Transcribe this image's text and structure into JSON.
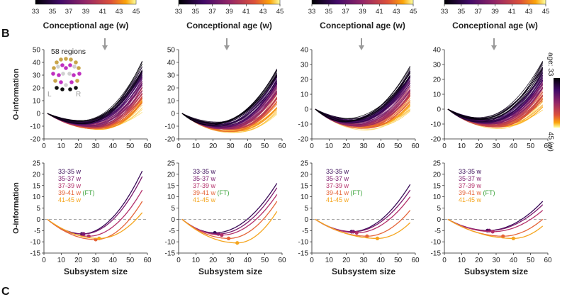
{
  "panel_labels": {
    "b": "B",
    "c": "C"
  },
  "colorbar_top": {
    "ticks": [
      "33",
      "35",
      "37",
      "39",
      "41",
      "43",
      "45"
    ],
    "xlabel": "Conceptional age (w)"
  },
  "age_colorbar": {
    "label_top": "age: 33",
    "label_bottom": "45 (w)"
  },
  "inset": {
    "label": "58 regions",
    "left": "L",
    "right": "R"
  },
  "panel_c_text": "",
  "colors": {
    "g33_35": "#3a0c58",
    "g35_37": "#7b1a6e",
    "g37_39": "#b3306a",
    "g39_41": "#e5653a",
    "g41_45": "#f5a51e",
    "ft": "#3aa33a",
    "arrow": "#9a9a9a"
  },
  "chart_data": [
    {
      "type": "line",
      "panel": "B top",
      "ylabel": "O-information",
      "xlabel": "",
      "xlim": [
        0,
        60
      ],
      "ylim": [
        -20,
        50
      ],
      "xticks": [
        "0",
        "10",
        "20",
        "30",
        "40",
        "50",
        "60"
      ],
      "yticks": [
        "-20",
        "-10",
        "0",
        "10",
        "20",
        "30",
        "40",
        "50"
      ],
      "description_series": "one curve per subject, colored by conceptional age 33–45 w",
      "x": [
        2,
        10,
        20,
        30,
        40,
        50,
        57
      ],
      "range_examples": {
        "youngest_end": 38,
        "oldest_end": 5,
        "min_value": -12
      }
    },
    {
      "type": "line",
      "panel": "B top",
      "ylabel": "",
      "xlim": [
        0,
        60
      ],
      "ylim": [
        -20,
        50
      ],
      "xticks": [
        "0",
        "10",
        "20",
        "30",
        "40",
        "50",
        "60"
      ],
      "yticks": [
        "-20",
        "-10",
        "0",
        "10",
        "20",
        "30",
        "40",
        "50"
      ],
      "range_examples": {
        "youngest_end": 33,
        "oldest_end": 3,
        "min_value": -14
      }
    },
    {
      "type": "line",
      "panel": "B top",
      "ylabel": "",
      "xlim": [
        0,
        60
      ],
      "ylim": [
        -20,
        40
      ],
      "xticks": [
        "0",
        "10",
        "20",
        "30",
        "40",
        "50",
        "60"
      ],
      "yticks": [
        "-20",
        "-10",
        "0",
        "10",
        "20",
        "30",
        "40"
      ],
      "range_examples": {
        "youngest_end": 27,
        "oldest_end": 2,
        "min_value": -13
      }
    },
    {
      "type": "line",
      "panel": "B top",
      "ylabel": "",
      "xlim": [
        0,
        60
      ],
      "ylim": [
        -20,
        40
      ],
      "xticks": [
        "0",
        "10",
        "20",
        "30",
        "40",
        "50",
        "60"
      ],
      "yticks": [
        "-20",
        "-10",
        "0",
        "10",
        "20",
        "30",
        "40"
      ],
      "range_examples": {
        "youngest_end": 30,
        "oldest_end": 2,
        "min_value": -12
      }
    },
    {
      "type": "line",
      "panel": "B bottom",
      "ylabel": "O-information",
      "xlabel": "Subsystem size",
      "xlim": [
        0,
        60
      ],
      "ylim": [
        -15,
        25
      ],
      "xticks": [
        "0",
        "10",
        "20",
        "30",
        "40",
        "50",
        "60"
      ],
      "yticks": [
        "-15",
        "-10",
        "-5",
        "0",
        "5",
        "10",
        "15",
        "20",
        "25"
      ],
      "legend": [
        "33-35 w",
        "35-37 w",
        "37-39 w",
        "39-41 w",
        "41-45 w"
      ],
      "legend_ft": "(FT)",
      "series": [
        {
          "name": "33-35 w",
          "min": [
            22,
            -6.5
          ],
          "end": [
            57,
            21.5
          ]
        },
        {
          "name": "35-37 w",
          "min": [
            23,
            -6.5
          ],
          "end": [
            57,
            19
          ]
        },
        {
          "name": "37-39 w",
          "min": [
            26,
            -7.5
          ],
          "end": [
            57,
            13
          ]
        },
        {
          "name": "39-41 w",
          "min": [
            30,
            -9
          ],
          "end": [
            57,
            8
          ]
        },
        {
          "name": "41-45 w",
          "min": [
            32,
            -8.5
          ],
          "end": [
            57,
            3
          ]
        }
      ]
    },
    {
      "type": "line",
      "panel": "B bottom",
      "ylabel": "",
      "xlabel": "Subsystem size",
      "xlim": [
        0,
        60
      ],
      "ylim": [
        -15,
        25
      ],
      "xticks": [
        "0",
        "10",
        "20",
        "30",
        "40",
        "50",
        "60"
      ],
      "yticks": [
        "-15",
        "-10",
        "-5",
        "0",
        "5",
        "10",
        "15",
        "20",
        "25"
      ],
      "legend": [
        "33-35 w",
        "35-37 w",
        "37-39 w",
        "39-41 w",
        "41-45 w"
      ],
      "legend_ft": "(FT)",
      "series": [
        {
          "name": "33-35 w",
          "min": [
            21,
            -6
          ],
          "end": [
            57,
            16
          ]
        },
        {
          "name": "35-37 w",
          "min": [
            23,
            -6.5
          ],
          "end": [
            57,
            14
          ]
        },
        {
          "name": "37-39 w",
          "min": [
            25,
            -7
          ],
          "end": [
            57,
            11
          ]
        },
        {
          "name": "39-41 w",
          "min": [
            29,
            -8.5
          ],
          "end": [
            57,
            8
          ]
        },
        {
          "name": "41-45 w",
          "min": [
            34,
            -10.5
          ],
          "end": [
            57,
            3.5
          ]
        }
      ]
    },
    {
      "type": "line",
      "panel": "B bottom",
      "ylabel": "",
      "xlabel": "Subsystem size",
      "xlim": [
        0,
        60
      ],
      "ylim": [
        -15,
        25
      ],
      "xticks": [
        "0",
        "10",
        "20",
        "30",
        "40",
        "50",
        "60"
      ],
      "yticks": [
        "-15",
        "-10",
        "-5",
        "0",
        "5",
        "10",
        "15",
        "20",
        "25"
      ],
      "legend": [
        "33-35 w",
        "35-37 w",
        "37-39 w",
        "39-41 w",
        "41-45 w"
      ],
      "legend_ft": "(FT)",
      "series": [
        {
          "name": "33-35 w",
          "min": [
            23,
            -5.5
          ],
          "end": [
            57,
            15.5
          ]
        },
        {
          "name": "35-37 w",
          "min": [
            24,
            -5.5
          ],
          "end": [
            57,
            13
          ]
        },
        {
          "name": "37-39 w",
          "min": [
            26,
            -6
          ],
          "end": [
            57,
            10
          ]
        },
        {
          "name": "39-41 w",
          "min": [
            32,
            -7.5
          ],
          "end": [
            57,
            4
          ]
        },
        {
          "name": "41-45 w",
          "min": [
            38,
            -8.5
          ],
          "end": [
            57,
            -1.5
          ]
        }
      ]
    },
    {
      "type": "line",
      "panel": "B bottom",
      "ylabel": "",
      "xlabel": "Subsystem size",
      "xlim": [
        0,
        60
      ],
      "ylim": [
        -15,
        25
      ],
      "xticks": [
        "0",
        "10",
        "20",
        "30",
        "40",
        "50",
        "60"
      ],
      "yticks": [
        "-15",
        "-10",
        "-5",
        "0",
        "5",
        "10",
        "15",
        "20",
        "25"
      ],
      "legend": [
        "33-35 w",
        "35-37 w",
        "37-39 w",
        "39-41 w",
        "41-45 w"
      ],
      "legend_ft": "(FT)",
      "series": [
        {
          "name": "33-35 w",
          "min": [
            25,
            -5
          ],
          "end": [
            57,
            8
          ]
        },
        {
          "name": "35-37 w",
          "min": [
            26,
            -5
          ],
          "end": [
            57,
            6.5
          ]
        },
        {
          "name": "37-39 w",
          "min": [
            28,
            -5.5
          ],
          "end": [
            57,
            4
          ]
        },
        {
          "name": "39-41 w",
          "min": [
            34,
            -7.5
          ],
          "end": [
            57,
            0
          ]
        },
        {
          "name": "41-45 w",
          "min": [
            40,
            -8.5
          ],
          "end": [
            57,
            -3
          ]
        }
      ]
    }
  ]
}
